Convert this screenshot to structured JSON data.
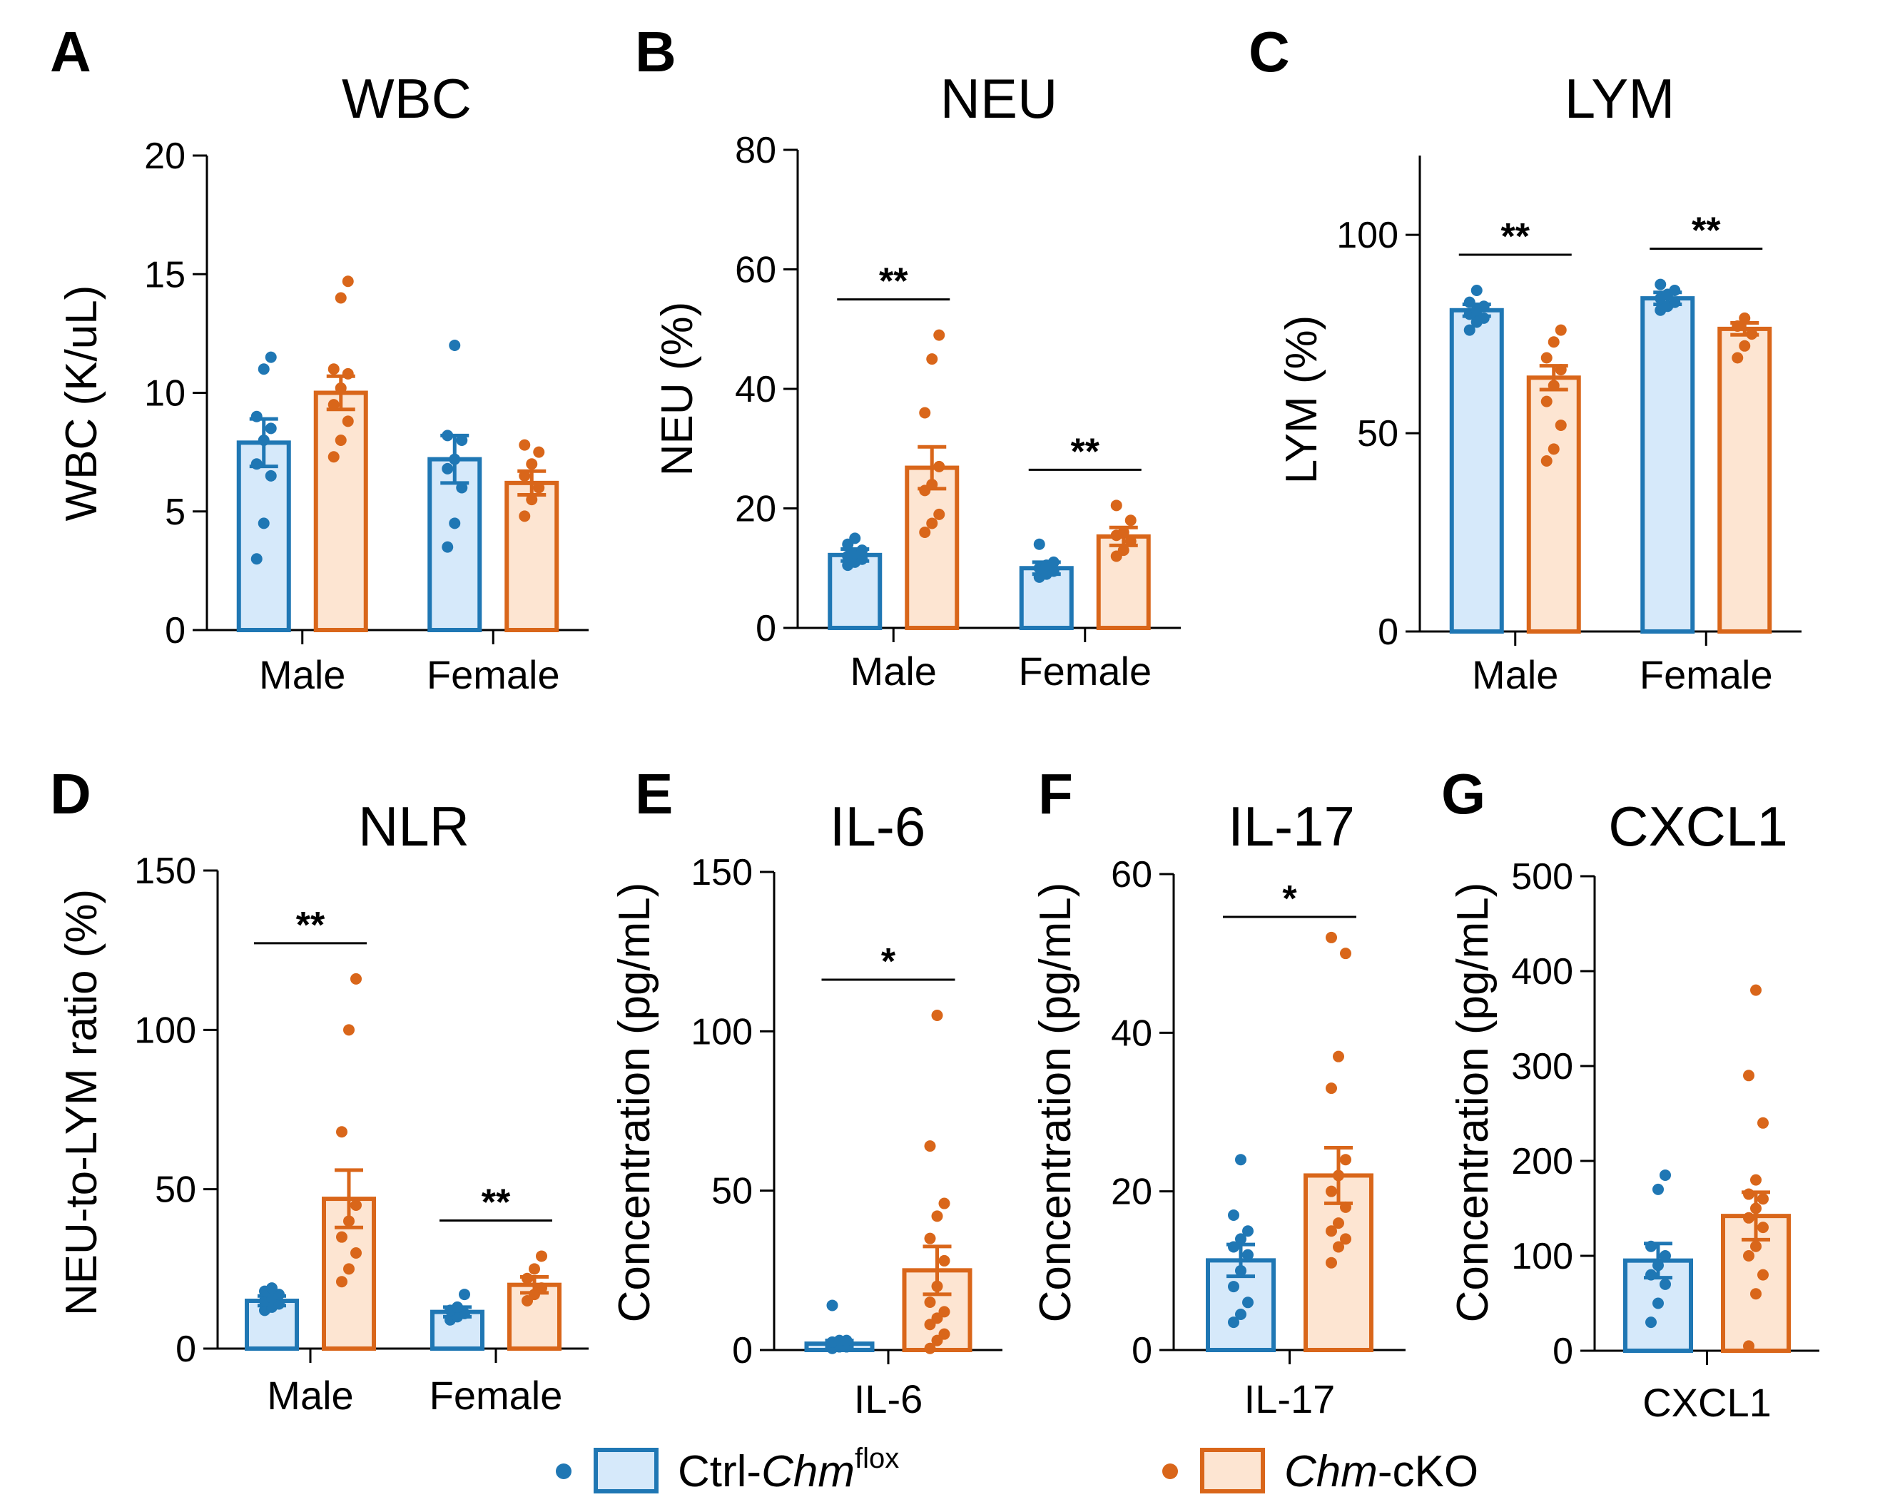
{
  "colors": {
    "ctrl_stroke": "#1f77b4",
    "ctrl_fill": "#d6e9fa",
    "cko_stroke": "#d9661a",
    "cko_fill": "#fde5d2",
    "axis": "#000000"
  },
  "legend": {
    "ctrl_prefix": "Ctrl-",
    "ctrl_gene": "Chm",
    "ctrl_sup": "flox",
    "cko_gene": "Chm",
    "cko_suffix": "-cKO"
  },
  "chart_data": [
    {
      "letter": "A",
      "title": "WBC",
      "type": "bar",
      "ylabel": "WBC (K/uL)",
      "ylim": [
        0,
        20
      ],
      "yticks": [
        0,
        5,
        10,
        15,
        20
      ],
      "categories": [
        "Male",
        "Female"
      ],
      "series": [
        {
          "name": "Ctrl-Chm flox",
          "values": [
            7.9,
            7.2
          ],
          "sem": [
            1.0,
            1.0
          ],
          "points": [
            [
              3.0,
              4.5,
              6.5,
              7.0,
              8.0,
              8.5,
              9.0,
              11.0,
              11.5
            ],
            [
              3.5,
              4.5,
              6.0,
              6.8,
              7.2,
              8.0,
              8.2,
              12.0
            ]
          ]
        },
        {
          "name": "Chm-cKO",
          "values": [
            10.0,
            6.2
          ],
          "sem": [
            0.7,
            0.5
          ],
          "points": [
            [
              7.3,
              8.0,
              8.8,
              9.5,
              10.2,
              10.8,
              11.0,
              14.0,
              14.7
            ],
            [
              4.8,
              5.5,
              6.0,
              6.5,
              7.0,
              7.5,
              7.8
            ]
          ]
        }
      ],
      "significance": []
    },
    {
      "letter": "B",
      "title": "NEU",
      "type": "bar",
      "ylabel": "NEU (%)",
      "ylim": [
        0,
        80
      ],
      "yticks": [
        0,
        20,
        40,
        60,
        80
      ],
      "categories": [
        "Male",
        "Female"
      ],
      "series": [
        {
          "name": "Ctrl-Chm flox",
          "values": [
            12.2,
            10.0
          ],
          "sem": [
            1.0,
            1.0
          ],
          "points": [
            [
              10.5,
              11.0,
              11.5,
              12.0,
              12.5,
              13.0,
              14.0,
              15.0
            ],
            [
              8.5,
              9.0,
              9.5,
              10.0,
              10.5,
              11.0,
              14.0
            ]
          ]
        },
        {
          "name": "Chm-cKO",
          "values": [
            26.8,
            15.3
          ],
          "sem": [
            3.5,
            1.5
          ],
          "points": [
            [
              16.0,
              17.5,
              19.0,
              23.0,
              24.0,
              27.0,
              36.0,
              45.0,
              49.0
            ],
            [
              12.0,
              13.0,
              14.5,
              15.5,
              16.0,
              18.0,
              20.5
            ]
          ]
        }
      ],
      "significance": [
        {
          "category": 0,
          "label": "**"
        },
        {
          "category": 1,
          "label": "**"
        }
      ]
    },
    {
      "letter": "C",
      "title": "LYM",
      "type": "bar",
      "ylabel": "LYM (%)",
      "ylim": [
        0,
        120
      ],
      "yticks": [
        0,
        50,
        100
      ],
      "categories": [
        "Male",
        "Female"
      ],
      "series": [
        {
          "name": "Ctrl-Chm flox",
          "values": [
            81.0,
            84.0
          ],
          "sem": [
            1.5,
            1.5
          ],
          "points": [
            [
              76.0,
              78.0,
              79.0,
              80.0,
              81.0,
              82.0,
              83.0,
              86.0
            ],
            [
              81.0,
              82.0,
              83.0,
              84.0,
              85.0,
              86.0,
              87.5
            ]
          ]
        },
        {
          "name": "Chm-cKO",
          "values": [
            64.0,
            76.3
          ],
          "sem": [
            3.0,
            1.5
          ],
          "points": [
            [
              43.0,
              46.0,
              52.0,
              58.0,
              62.0,
              66.0,
              69.0,
              73.0,
              76.0
            ],
            [
              69.0,
              72.0,
              75.0,
              77.0,
              79.0
            ]
          ]
        }
      ],
      "significance": [
        {
          "category": 0,
          "label": "**"
        },
        {
          "category": 1,
          "label": "**"
        }
      ]
    },
    {
      "letter": "D",
      "title": "NLR",
      "type": "bar",
      "ylabel": "NEU-to-LYM ratio (%)",
      "ylim": [
        0,
        150
      ],
      "yticks": [
        0,
        50,
        100,
        150
      ],
      "categories": [
        "Male",
        "Female"
      ],
      "series": [
        {
          "name": "Ctrl-Chm flox",
          "values": [
            15.0,
            11.5
          ],
          "sem": [
            1.5,
            1.5
          ],
          "points": [
            [
              12.0,
              13.0,
              14.0,
              15.0,
              16.0,
              17.0,
              18.0,
              19.0
            ],
            [
              9.0,
              10.0,
              11.0,
              12.0,
              13.0,
              17.0
            ]
          ]
        },
        {
          "name": "Chm-cKO",
          "values": [
            47.0,
            20.0
          ],
          "sem": [
            9.0,
            2.5
          ],
          "points": [
            [
              21.0,
              25.0,
              30.0,
              35.0,
              40.0,
              45.0,
              68.0,
              100.0,
              116.0
            ],
            [
              15.0,
              17.0,
              19.0,
              22.0,
              25.0,
              29.0
            ]
          ]
        }
      ],
      "significance": [
        {
          "category": 0,
          "label": "**"
        },
        {
          "category": 1,
          "label": "**"
        }
      ]
    },
    {
      "letter": "E",
      "title": "IL-6",
      "type": "bar",
      "ylabel": "Concentration (pg/mL)",
      "ylim": [
        0,
        150
      ],
      "yticks": [
        0,
        50,
        100,
        150
      ],
      "categories": [
        "IL-6"
      ],
      "series": [
        {
          "name": "Ctrl-Chm flox",
          "values": [
            2.0
          ],
          "sem": [
            1.0
          ],
          "points": [
            [
              0.5,
              1.0,
              1.0,
              1.5,
              2.0,
              2.0,
              2.5,
              3.0,
              3.0,
              14.0
            ]
          ]
        },
        {
          "name": "Chm-cKO",
          "values": [
            25.0
          ],
          "sem": [
            7.5
          ],
          "points": [
            [
              0.5,
              3.0,
              5.0,
              8.0,
              10.0,
              12.0,
              15.0,
              20.0,
              28.0,
              35.0,
              42.0,
              46.0,
              64.0,
              105.0
            ]
          ]
        }
      ],
      "significance": [
        {
          "category": 0,
          "label": "*"
        }
      ]
    },
    {
      "letter": "F",
      "title": "IL-17",
      "type": "bar",
      "ylabel": "Concentration (pg/mL)",
      "ylim": [
        0,
        60
      ],
      "yticks": [
        0,
        20,
        40,
        60
      ],
      "categories": [
        "IL-17"
      ],
      "series": [
        {
          "name": "Ctrl-Chm flox",
          "values": [
            11.3
          ],
          "sem": [
            2.0
          ],
          "points": [
            [
              3.5,
              4.5,
              6.0,
              8.0,
              10.0,
              12.0,
              13.0,
              14.0,
              15.0,
              17.0,
              24.0
            ]
          ]
        },
        {
          "name": "Chm-cKO",
          "values": [
            22.0
          ],
          "sem": [
            3.5
          ],
          "points": [
            [
              11.0,
              13.0,
              14.0,
              15.0,
              16.0,
              18.0,
              20.0,
              22.0,
              24.0,
              33.0,
              37.0,
              50.0,
              52.0
            ]
          ]
        }
      ],
      "significance": [
        {
          "category": 0,
          "label": "*"
        }
      ]
    },
    {
      "letter": "G",
      "title": "CXCL1",
      "type": "bar",
      "ylabel": "Concentration (pg/mL)",
      "ylim": [
        0,
        500
      ],
      "yticks": [
        0,
        100,
        200,
        300,
        400,
        500
      ],
      "categories": [
        "CXCL1"
      ],
      "series": [
        {
          "name": "Ctrl-Chm flox",
          "values": [
            95.0
          ],
          "sem": [
            18.0
          ],
          "points": [
            [
              30.0,
              50.0,
              70.0,
              80.0,
              90.0,
              100.0,
              110.0,
              170.0,
              185.0
            ]
          ]
        },
        {
          "name": "Chm-cKO",
          "values": [
            142.0
          ],
          "sem": [
            25.0
          ],
          "points": [
            [
              5.0,
              60.0,
              80.0,
              100.0,
              110.0,
              130.0,
              140.0,
              150.0,
              160.0,
              165.0,
              180.0,
              240.0,
              290.0,
              380.0
            ]
          ]
        }
      ],
      "significance": []
    }
  ]
}
